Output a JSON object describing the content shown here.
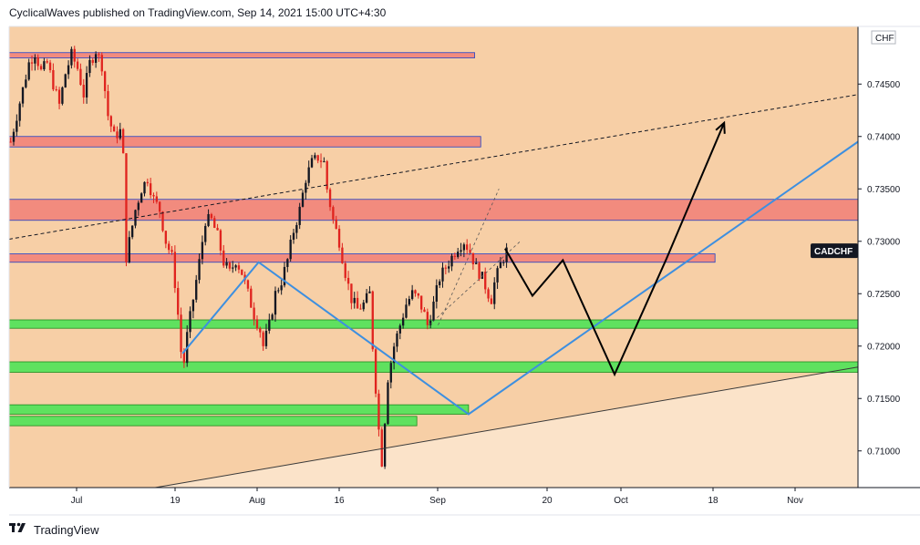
{
  "header": {
    "text": "CyclicalWaves published on TradingView.com, Sep 14, 2021 15:00 UTC+4:30"
  },
  "footer": {
    "brand": "TradingView",
    "logo_icon": "tradingview-logo-icon"
  },
  "chart_data": {
    "type": "candlestick",
    "symbol_label": "CADCHF",
    "currency_label": "CHF",
    "last_price": 0.7291,
    "colors": {
      "up": "#131722",
      "down": "#e0241f",
      "resistance": "#f28b7e",
      "support": "#5fe15f",
      "trendline": "#3d8fe0",
      "projection": "#000000",
      "background": "#f7cfa6"
    },
    "y_axis": {
      "ylim": [
        0.7065,
        0.7505
      ],
      "ticks": [
        "0.74500",
        "0.74000",
        "0.73500",
        "0.73000",
        "0.72500",
        "0.72000",
        "0.71500",
        "0.71000"
      ]
    },
    "x_axis": {
      "ticks": [
        "Jul",
        "19",
        "Aug",
        "16",
        "Sep",
        "20",
        "Oct",
        "18",
        "Nov"
      ]
    },
    "price_path": [
      [
        0,
        0.7395
      ],
      [
        2,
        0.742
      ],
      [
        4,
        0.7445
      ],
      [
        6,
        0.747
      ],
      [
        8,
        0.748
      ],
      [
        10,
        0.7462
      ],
      [
        12,
        0.747
      ],
      [
        14,
        0.745
      ],
      [
        16,
        0.743
      ],
      [
        18,
        0.746
      ],
      [
        20,
        0.7478
      ],
      [
        22,
        0.7465
      ],
      [
        24,
        0.744
      ],
      [
        26,
        0.747
      ],
      [
        28,
        0.7482
      ],
      [
        30,
        0.7468
      ],
      [
        32,
        0.742
      ],
      [
        34,
        0.74
      ],
      [
        36,
        0.7405
      ],
      [
        37,
        0.738
      ],
      [
        38,
        0.7285
      ],
      [
        39,
        0.73
      ],
      [
        41,
        0.733
      ],
      [
        43,
        0.735
      ],
      [
        45,
        0.736
      ],
      [
        47,
        0.734
      ],
      [
        49,
        0.733
      ],
      [
        51,
        0.73
      ],
      [
        53,
        0.7285
      ],
      [
        54,
        0.726
      ],
      [
        55,
        0.723
      ],
      [
        56,
        0.7195
      ],
      [
        57,
        0.7185
      ],
      [
        58,
        0.721
      ],
      [
        60,
        0.7245
      ],
      [
        62,
        0.728
      ],
      [
        64,
        0.732
      ],
      [
        66,
        0.732
      ],
      [
        68,
        0.7305
      ],
      [
        70,
        0.728
      ],
      [
        72,
        0.727
      ],
      [
        74,
        0.7282
      ],
      [
        76,
        0.727
      ],
      [
        78,
        0.725
      ],
      [
        80,
        0.723
      ],
      [
        82,
        0.7215
      ],
      [
        83,
        0.72
      ],
      [
        85,
        0.722
      ],
      [
        87,
        0.725
      ],
      [
        89,
        0.7262
      ],
      [
        91,
        0.7282
      ],
      [
        93,
        0.731
      ],
      [
        95,
        0.733
      ],
      [
        97,
        0.736
      ],
      [
        99,
        0.7375
      ],
      [
        101,
        0.738
      ],
      [
        103,
        0.7375
      ],
      [
        104,
        0.735
      ],
      [
        106,
        0.732
      ],
      [
        108,
        0.73
      ],
      [
        110,
        0.727
      ],
      [
        112,
        0.7245
      ],
      [
        114,
        0.7235
      ],
      [
        116,
        0.724
      ],
      [
        118,
        0.725
      ],
      [
        119,
        0.72
      ],
      [
        120,
        0.716
      ],
      [
        121,
        0.712
      ],
      [
        122,
        0.709
      ],
      [
        123,
        0.713
      ],
      [
        124,
        0.717
      ],
      [
        126,
        0.72
      ],
      [
        128,
        0.722
      ],
      [
        130,
        0.724
      ],
      [
        132,
        0.725
      ],
      [
        134,
        0.7245
      ],
      [
        136,
        0.723
      ],
      [
        137,
        0.722
      ],
      [
        139,
        0.724
      ],
      [
        141,
        0.7265
      ],
      [
        143,
        0.7275
      ],
      [
        145,
        0.7285
      ],
      [
        147,
        0.7295
      ],
      [
        149,
        0.73
      ],
      [
        151,
        0.729
      ],
      [
        153,
        0.7275
      ],
      [
        155,
        0.7265
      ],
      [
        157,
        0.725
      ],
      [
        158,
        0.7245
      ],
      [
        159,
        0.726
      ],
      [
        161,
        0.7278
      ],
      [
        163,
        0.7291
      ]
    ],
    "zones": [
      {
        "kind": "resistance",
        "y": [
          0.7475,
          0.748
        ],
        "x_end": 153
      },
      {
        "kind": "resistance",
        "y": [
          0.739,
          0.74
        ],
        "x_end": 155
      },
      {
        "kind": "resistance",
        "y": [
          0.732,
          0.734
        ],
        "x_end": 279
      },
      {
        "kind": "resistance",
        "y": [
          0.728,
          0.7288
        ],
        "x_end": 232
      },
      {
        "kind": "support",
        "y": [
          0.7217,
          0.7225
        ],
        "x_end": 279
      },
      {
        "kind": "support",
        "y": [
          0.7175,
          0.7185
        ],
        "x_end": 279
      },
      {
        "kind": "support",
        "y": [
          0.7135,
          0.7144
        ],
        "x_end": 151
      },
      {
        "kind": "support",
        "y": [
          0.7124,
          0.7133
        ],
        "x_end": 134
      }
    ],
    "trendlines": [
      {
        "style": "blue",
        "points": [
          [
            57,
            0.7193
          ],
          [
            82,
            0.728
          ],
          [
            151,
            0.7135
          ],
          [
            279,
            0.7395
          ]
        ]
      },
      {
        "style": "dashed",
        "points": [
          [
            0,
            0.7302
          ],
          [
            279,
            0.744
          ]
        ]
      },
      {
        "style": "thin",
        "points": [
          [
            48,
            0.7065
          ],
          [
            279,
            0.718
          ]
        ]
      },
      {
        "style": "channel",
        "points": [
          [
            141,
            0.722
          ],
          [
            161,
            0.735
          ]
        ]
      },
      {
        "style": "channel",
        "points": [
          [
            138,
            0.722
          ],
          [
            168,
            0.73
          ]
        ]
      }
    ],
    "projection": [
      [
        163,
        0.7293
      ],
      [
        172,
        0.7248
      ],
      [
        182,
        0.7282
      ],
      [
        199,
        0.7173
      ],
      [
        216,
        0.7283
      ],
      [
        235,
        0.7413
      ]
    ]
  }
}
